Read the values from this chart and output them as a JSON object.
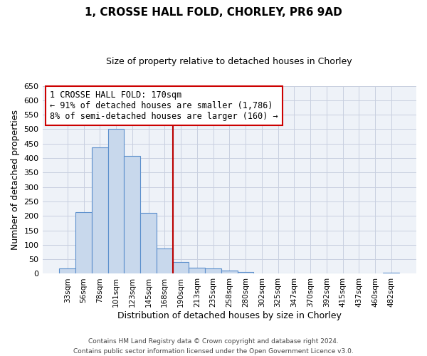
{
  "title": "1, CROSSE HALL FOLD, CHORLEY, PR6 9AD",
  "subtitle": "Size of property relative to detached houses in Chorley",
  "xlabel": "Distribution of detached houses by size in Chorley",
  "ylabel": "Number of detached properties",
  "bar_labels": [
    "33sqm",
    "56sqm",
    "78sqm",
    "101sqm",
    "123sqm",
    "145sqm",
    "168sqm",
    "190sqm",
    "213sqm",
    "235sqm",
    "258sqm",
    "280sqm",
    "302sqm",
    "325sqm",
    "347sqm",
    "370sqm",
    "392sqm",
    "415sqm",
    "437sqm",
    "460sqm",
    "482sqm"
  ],
  "bar_values": [
    18,
    212,
    437,
    500,
    408,
    210,
    88,
    40,
    22,
    18,
    12,
    5,
    0,
    0,
    0,
    0,
    0,
    0,
    0,
    0,
    3
  ],
  "bar_color": "#c8d8ec",
  "bar_edge_color": "#5b8fcc",
  "vline_color": "#bb0000",
  "annotation_text": "1 CROSSE HALL FOLD: 170sqm\n← 91% of detached houses are smaller (1,786)\n8% of semi-detached houses are larger (160) →",
  "annotation_box_color": "#ffffff",
  "annotation_border_color": "#cc0000",
  "ylim": [
    0,
    650
  ],
  "yticks": [
    0,
    50,
    100,
    150,
    200,
    250,
    300,
    350,
    400,
    450,
    500,
    550,
    600,
    650
  ],
  "footer_line1": "Contains HM Land Registry data © Crown copyright and database right 2024.",
  "footer_line2": "Contains public sector information licensed under the Open Government Licence v3.0.",
  "bg_color": "#ffffff",
  "plot_bg_color": "#eef2f8",
  "grid_color": "#c8cfe0"
}
